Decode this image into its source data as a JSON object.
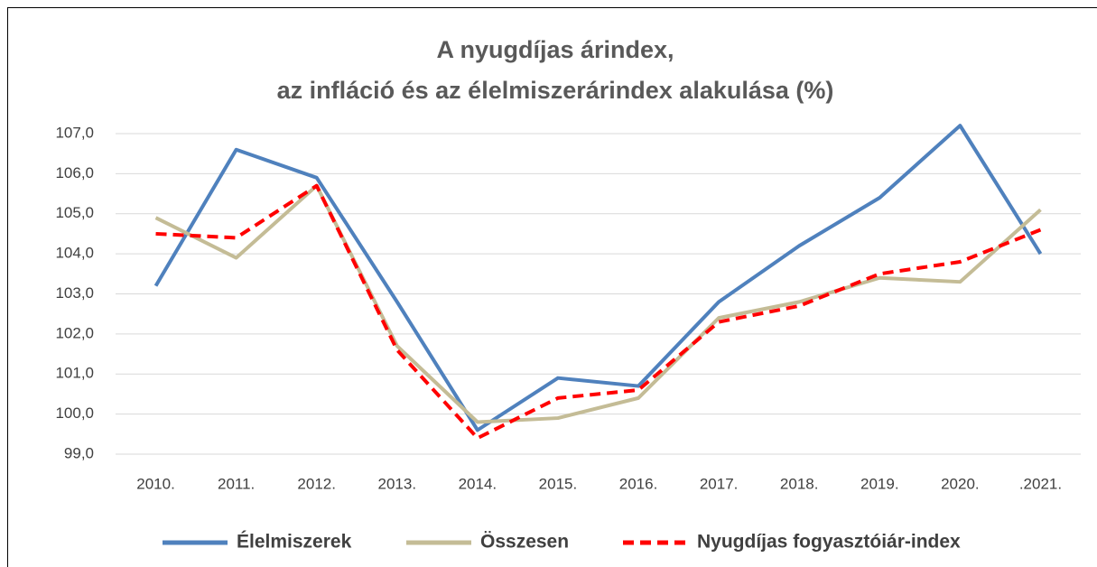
{
  "chart_data": {
    "type": "line",
    "title": [
      "A nyugdíjas árindex,",
      "az infláció és az élelmiszerárindex alakulása (%)"
    ],
    "categories": [
      "2010.",
      "2011.",
      "2012.",
      "2013.",
      "2014.",
      "2015.",
      "2016.",
      "2017.",
      "2018.",
      "2019.",
      "2020.",
      ".2021."
    ],
    "series": [
      {
        "name": "Élelmiszerek",
        "color": "#4f81bd",
        "dash": false,
        "values": [
          103.2,
          106.6,
          105.9,
          102.8,
          99.6,
          100.9,
          100.7,
          102.8,
          104.2,
          105.4,
          107.2,
          104.0
        ]
      },
      {
        "name": "Összesen",
        "color": "#c4bc96",
        "dash": false,
        "values": [
          104.9,
          103.9,
          105.7,
          101.7,
          99.8,
          99.9,
          100.4,
          102.4,
          102.8,
          103.4,
          103.3,
          105.1
        ]
      },
      {
        "name": "Nyugdíjas fogyasztóiár-index",
        "color": "#ff0000",
        "dash": true,
        "values": [
          104.5,
          104.4,
          105.7,
          101.6,
          99.4,
          100.4,
          100.6,
          102.3,
          102.7,
          103.5,
          103.8,
          104.6
        ]
      }
    ],
    "ylim": [
      99,
      107
    ],
    "yticks": [
      {
        "value": 99,
        "label": "99,0"
      },
      {
        "value": 100,
        "label": "100,0"
      },
      {
        "value": 101,
        "label": "101,0"
      },
      {
        "value": 102,
        "label": "102,0"
      },
      {
        "value": 103,
        "label": "103,0"
      },
      {
        "value": 104,
        "label": "104,0"
      },
      {
        "value": 105,
        "label": "105,0"
      },
      {
        "value": 106,
        "label": "106,0"
      },
      {
        "value": 107,
        "label": "107,0"
      }
    ],
    "grid": true,
    "legend": "bottom"
  }
}
